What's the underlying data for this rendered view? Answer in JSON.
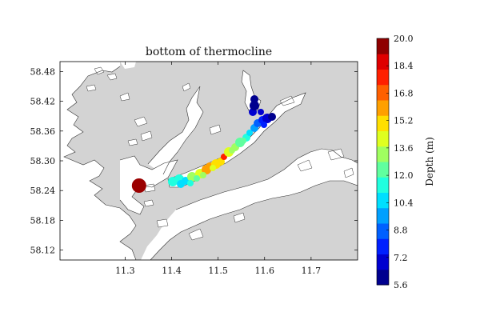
{
  "map": {
    "title": "bottom of thermocline",
    "background_color": "#d3d3d3",
    "land_color": "#d3d3d3",
    "water_color": "#ffffff",
    "xlim": [
      11.16,
      11.8
    ],
    "ylim": [
      58.1,
      58.5
    ],
    "x_ticks": [
      "11.3",
      "11.4",
      "11.5",
      "11.6",
      "11.7"
    ],
    "x_tick_values": [
      11.3,
      11.4,
      11.5,
      11.6,
      11.7
    ],
    "y_ticks": [
      "58.48",
      "58.42",
      "58.36",
      "58.30",
      "58.24",
      "58.18",
      "58.12"
    ],
    "y_tick_values": [
      58.48,
      58.42,
      58.36,
      58.3,
      58.24,
      58.18,
      58.12
    ],
    "station_marker": {
      "lon": 11.33,
      "lat": 58.25,
      "color": "#9b0000"
    }
  },
  "colorbar": {
    "label": "Depth (m)",
    "min": 5.6,
    "max": 20.0,
    "tick_labels": [
      "20.0",
      "18.4",
      "16.8",
      "15.2",
      "13.6",
      "12.0",
      "10.4",
      "8.8",
      "7.2",
      "5.6"
    ],
    "tick_values": [
      20.0,
      18.4,
      16.8,
      15.2,
      13.6,
      12.0,
      10.4,
      8.8,
      7.2,
      5.6
    ],
    "colors": [
      "#00008f",
      "#0000d0",
      "#0020ff",
      "#0060ff",
      "#00a0ff",
      "#00dfff",
      "#20ffdf",
      "#60ff9f",
      "#a0ff60",
      "#dfff20",
      "#ffdf00",
      "#ffa000",
      "#ff6000",
      "#ff2000",
      "#df0000",
      "#8f0000"
    ]
  }
}
